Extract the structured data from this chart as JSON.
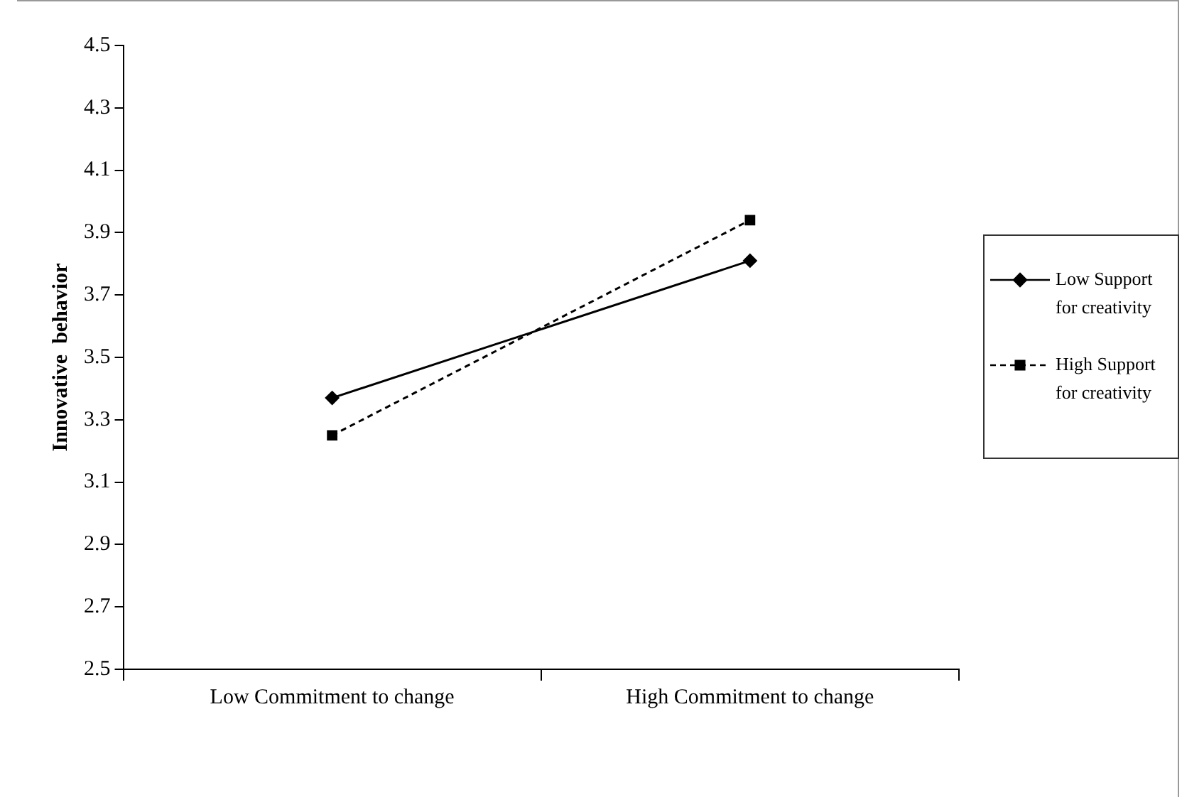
{
  "chart_data": {
    "type": "line",
    "ylabel": "Innovative  behavior",
    "categories": [
      "Low Commitment to change",
      "High Commitment to change"
    ],
    "series": [
      {
        "name": "Low Support for creativity",
        "color": "#000000",
        "values": [
          3.37,
          3.81
        ],
        "marker": "diamond",
        "line_style": "solid"
      },
      {
        "name": "High Support for creativity",
        "color": "#000000",
        "values": [
          3.25,
          3.94
        ],
        "marker": "square",
        "line_style": "dashed"
      }
    ],
    "ylim": [
      2.5,
      4.5
    ],
    "yticks": [
      2.5,
      2.7,
      2.9,
      3.1,
      3.3,
      3.5,
      3.7,
      3.9,
      4.1,
      4.3,
      4.5
    ],
    "grid": false,
    "legend": "right"
  }
}
